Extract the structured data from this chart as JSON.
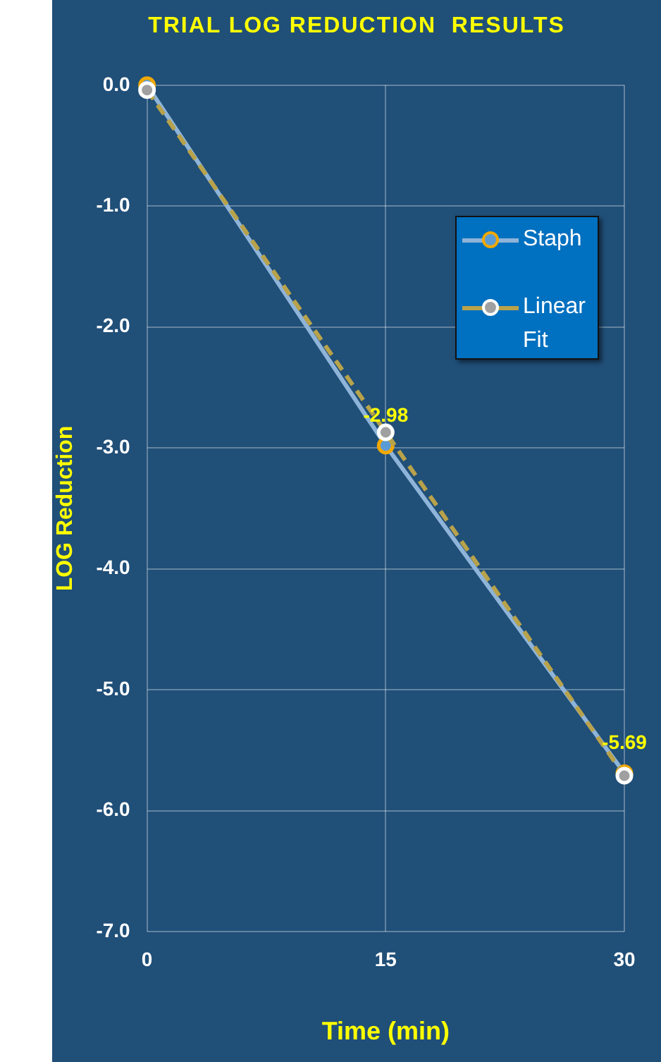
{
  "chart_data": {
    "type": "line",
    "title": "TRIAL LOG REDUCTION  RESULTS",
    "xlabel": "Time (min)",
    "ylabel": "LOG Reduction",
    "x": [
      0,
      15,
      30
    ],
    "xlim": [
      0,
      30
    ],
    "xticks": [
      0,
      15,
      30
    ],
    "ylim": [
      -7,
      0
    ],
    "yticks": [
      {
        "value": -7,
        "label": "-7.0"
      },
      {
        "value": -6,
        "label": "-6.0"
      },
      {
        "value": -5,
        "label": "-5.0"
      },
      {
        "value": -4,
        "label": "-4.0"
      },
      {
        "value": -3,
        "label": "-3.0"
      },
      {
        "value": -2,
        "label": "-2.0"
      },
      {
        "value": -1,
        "label": "-1.0"
      },
      {
        "value": 0,
        "label": "0.0"
      }
    ],
    "grid": true,
    "legend": "top right",
    "marker": "circle",
    "series": [
      {
        "name": "Staph",
        "color": "#8fb4d9",
        "values": [
          0,
          -2.98,
          -5.69
        ],
        "value_labels": [
          null,
          "-2.98",
          "-5.69"
        ],
        "line_style": "solid"
      },
      {
        "name": "Linear Fit",
        "color": "#b8a24a",
        "values": [
          -0.04,
          -2.87,
          -5.71
        ],
        "line_style": "dashed"
      }
    ]
  }
}
